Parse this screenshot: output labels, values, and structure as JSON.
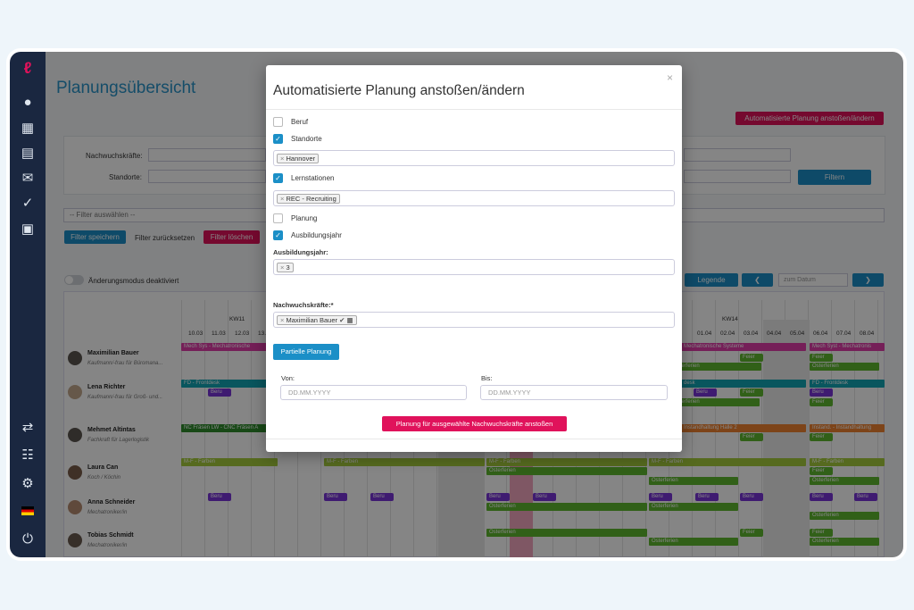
{
  "app": {
    "page_title": "Planungsübersicht",
    "trigger_button": "Automatisierte Planung anstoßen/ändern"
  },
  "filters": {
    "nachwuchs_label": "Nachwuchskräfte:",
    "standorte_label": "Standorte:",
    "filter_button": "Filtern",
    "filter_select": "-- Filter auswählen --",
    "save": "Filter speichern",
    "reset": "Filter zurücksetzen",
    "delete": "Filter löschen"
  },
  "toolbar": {
    "mode_toggle": "Änderungsmodus deaktiviert",
    "legend": "Legende",
    "prev": "❮",
    "next": "❯",
    "date_placeholder": "zum Datum"
  },
  "calendar": {
    "weeks": [
      "KW11",
      "KW14"
    ],
    "dates_left": [
      "10.03",
      "11.03",
      "12.03",
      "13."
    ],
    "dates_right": [
      "01.04",
      "02.04",
      "03.04",
      "04.04",
      "05.04",
      "06.04",
      "07.04",
      "08.04"
    ],
    "people": [
      {
        "name": "Maximilian Bauer",
        "role": "Kaufmann/-frau für Büromana..."
      },
      {
        "name": "Lena Richter",
        "role": "Kaufmann/-frau für Groß- und..."
      },
      {
        "name": "Mehmet Altintas",
        "role": "Fachkraft für Lagerlogistik"
      },
      {
        "name": "Laura Can",
        "role": "Koch / Köchin"
      },
      {
        "name": "Anna Schneider",
        "role": "Mechatroniker/in"
      },
      {
        "name": "Tobias Schmidt",
        "role": "Mechatroniker/in"
      }
    ],
    "bars": {
      "mech_left": "Mech Sys - Mechatronische",
      "mech_right": "Mechatronische Systeme",
      "mech_far": "Mech Syst - Mechatronis",
      "fd_left": "FD - Frontdesk",
      "fd_mid": "desk",
      "fd_right": "FD - Frontdesk",
      "cnc": "NC Fräsen LW - CNC Fräsen A",
      "inst_mid": "Instandhaltung Halle 2",
      "inst_right": "Instand. - Instandhaltung",
      "mf_left": "M-F - Farben",
      "mf_mid": "M-F - Farben",
      "mf_mid2": "M-F - Farben",
      "mf_right": "M-F - Farben",
      "mf_far": "M-F - Farben",
      "beru": "Beru",
      "feier": "Feier",
      "osterferien": "Osterferien"
    }
  },
  "modal": {
    "title": "Automatisierte Planung anstoßen/ändern",
    "close": "×",
    "options": [
      {
        "label": "Beruf",
        "checked": false
      },
      {
        "label": "Standorte",
        "checked": true
      },
      {
        "label": "Lernstationen",
        "checked": true
      },
      {
        "label": "Planung",
        "checked": false
      },
      {
        "label": "Ausbildungsjahr",
        "checked": true
      }
    ],
    "standorte_tag": "Hannover",
    "lernstationen_tag": "REC - Recruiting",
    "ausbildungsjahr_label": "Ausbildungsjahr:",
    "ausbildungsjahr_tag": "3",
    "nachwuchs_label": "Nachwuchskräfte:*",
    "nachwuchs_tag": "Maximilian Bauer",
    "partial_button": "Partielle Planung",
    "von_label": "Von:",
    "bis_label": "Bis:",
    "date_placeholder": "DD.MM.YYYY",
    "submit": "Planung für ausgewählte Nachwuchskräfte anstoßen",
    "tag_remove": "×",
    "check": "✓"
  },
  "colors": {
    "accent_red": "#e0125b",
    "accent_blue": "#1b8fc7",
    "sidebar": "#1a2740",
    "title": "#2a94c9"
  }
}
